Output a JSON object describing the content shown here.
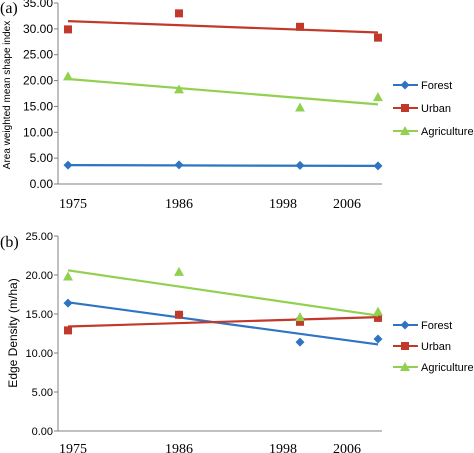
{
  "chart_data": [
    {
      "panel_label": "(a)",
      "type": "scatter",
      "ylabel": "Area weighted mean shape index",
      "ylim": [
        0,
        35
      ],
      "yticks": [
        "0.00",
        "5.00",
        "10.00",
        "15.00",
        "20.00",
        "25.00",
        "30.00",
        "35.00"
      ],
      "xticks": [
        "1975",
        "1986",
        "1998",
        "2006"
      ],
      "legend_position": "right",
      "series": [
        {
          "name": "Forest",
          "color": "#2e74c2",
          "marker": "diamond",
          "x": [
            1975,
            1986,
            2000,
            2010
          ],
          "values": [
            3.65,
            3.7,
            3.6,
            3.5
          ],
          "trend": [
            3.65,
            3.5
          ]
        },
        {
          "name": "Urban",
          "color": "#c0392b",
          "marker": "square",
          "x": [
            1975,
            1986,
            2000,
            2010
          ],
          "values": [
            29.9,
            33.0,
            30.4,
            28.3
          ],
          "trend": [
            31.5,
            29.3
          ]
        },
        {
          "name": "Agriculture",
          "color": "#92d050",
          "marker": "triangle",
          "x": [
            1975,
            1986,
            2000,
            2010
          ],
          "values": [
            20.8,
            18.3,
            14.8,
            16.8
          ],
          "trend": [
            20.3,
            15.4
          ]
        }
      ]
    },
    {
      "panel_label": "(b)",
      "type": "scatter",
      "ylabel": "Edge Density (m/ha)",
      "ylim": [
        0,
        25
      ],
      "yticks": [
        "0.00",
        "5.00",
        "10.00",
        "15.00",
        "20.00",
        "25.00"
      ],
      "xticks": [
        "1975",
        "1986",
        "1998",
        "2006"
      ],
      "legend_position": "right",
      "series": [
        {
          "name": "Forest",
          "color": "#2e74c2",
          "marker": "diamond",
          "x": [
            1975,
            1986,
            2000,
            2010
          ],
          "values": [
            16.4,
            14.9,
            11.4,
            11.8
          ],
          "trend": [
            16.5,
            11.1
          ]
        },
        {
          "name": "Urban",
          "color": "#c0392b",
          "marker": "square",
          "x": [
            1975,
            1986,
            2000,
            2010
          ],
          "values": [
            12.9,
            14.9,
            14.0,
            14.5
          ],
          "trend": [
            13.4,
            14.6
          ]
        },
        {
          "name": "Agriculture",
          "color": "#92d050",
          "marker": "triangle",
          "x": [
            1975,
            1986,
            2000,
            2010
          ],
          "values": [
            19.8,
            20.4,
            14.6,
            15.3
          ],
          "trend": [
            20.6,
            14.8
          ]
        }
      ]
    }
  ]
}
